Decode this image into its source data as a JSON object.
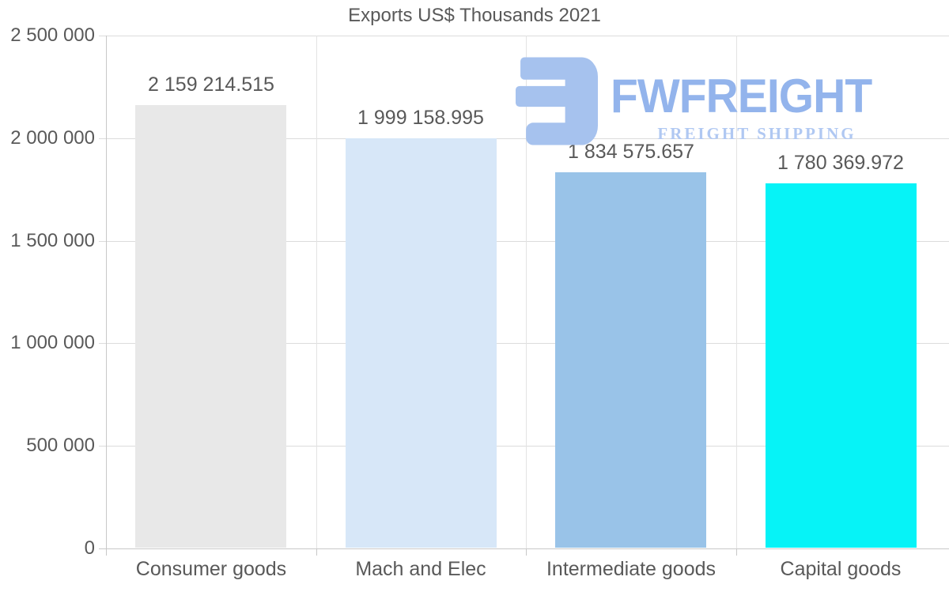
{
  "title": "Exports US$ Thousands 2021",
  "watermark": {
    "brand": "FWFREIGHT",
    "tagline": "FREIGHT SHIPPING",
    "logo_icon": "mirrored-f-mark-icon",
    "brand_color": "#93b4ec",
    "tagline_color": "#b0c8f2",
    "mark_color": "#a6c2ee"
  },
  "chart_data": {
    "type": "bar",
    "title": "Exports US$ Thousands 2021",
    "categories": [
      "Consumer goods",
      "Mach and Elec",
      "Intermediate goods",
      "Capital goods"
    ],
    "values": [
      2159214.515,
      1999158.995,
      1834575.657,
      1780369.972
    ],
    "value_labels": [
      "2 159 214.515",
      "1 999 158.995",
      "1 834 575.657",
      "1 780 369.972"
    ],
    "bar_colors": [
      "#e8e8e8",
      "#d7e7f8",
      "#99c3e8",
      "#06f3f7"
    ],
    "xlabel": "",
    "ylabel": "",
    "ylim": [
      0,
      2500000
    ],
    "yticks": [
      0,
      500000,
      1000000,
      1500000,
      2000000,
      2500000
    ],
    "ytick_labels": [
      "0",
      "500 000",
      "1 000 000",
      "1 500 000",
      "2 000 000",
      "2 500 000"
    ],
    "grid": true,
    "legend": false,
    "text_color": "#595959"
  }
}
